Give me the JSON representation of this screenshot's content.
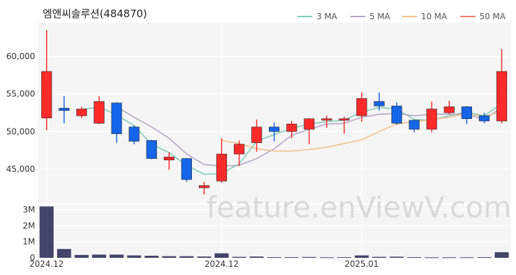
{
  "chart_data": {
    "type": "candlestick",
    "title": "엠앤씨솔루션(484870)",
    "watermark": "feature.enViewV.com",
    "legend": [
      {
        "name": "3 MA",
        "color": "#7fcdbb"
      },
      {
        "name": "5 MA",
        "color": "#b7a4c4"
      },
      {
        "name": "10 MA",
        "color": "#f1c08a"
      },
      {
        "name": "50 MA",
        "color": "#f2796b"
      }
    ],
    "colors": {
      "up": "#ff2a2a",
      "down": "#1565e8",
      "volume": "#43446a"
    },
    "ylim": [
      40500,
      64500
    ],
    "y_ticks": [
      45000,
      50000,
      55000,
      60000
    ],
    "y_tick_labels": [
      "45,000",
      "50,000",
      "55,000",
      "60,000"
    ],
    "volume_ylim": [
      0,
      3300000
    ],
    "volume_ticks": [
      0,
      1000000,
      2000000,
      3000000
    ],
    "volume_tick_labels": [
      "0",
      "1M",
      "2M",
      "3M"
    ],
    "x_tick_labels": [
      {
        "index": 0,
        "label": "2024.12"
      },
      {
        "index": 10,
        "label": "2024.12"
      },
      {
        "index": 18,
        "label": "2025.01"
      }
    ],
    "candles": [
      {
        "o": 51800,
        "h": 63500,
        "l": 50200,
        "c": 58000,
        "v": 3200000
      },
      {
        "o": 53100,
        "h": 54700,
        "l": 51100,
        "c": 52800,
        "v": 550000
      },
      {
        "o": 52100,
        "h": 53300,
        "l": 51800,
        "c": 53000,
        "v": 180000
      },
      {
        "o": 51100,
        "h": 54700,
        "l": 51000,
        "c": 54000,
        "v": 200000
      },
      {
        "o": 53800,
        "h": 53900,
        "l": 48500,
        "c": 49700,
        "v": 200000
      },
      {
        "o": 50600,
        "h": 50800,
        "l": 48300,
        "c": 48700,
        "v": 150000
      },
      {
        "o": 48800,
        "h": 48900,
        "l": 46300,
        "c": 46400,
        "v": 130000
      },
      {
        "o": 46200,
        "h": 47200,
        "l": 44900,
        "c": 46600,
        "v": 100000
      },
      {
        "o": 46400,
        "h": 46500,
        "l": 43300,
        "c": 43600,
        "v": 100000
      },
      {
        "o": 42500,
        "h": 43300,
        "l": 41600,
        "c": 42800,
        "v": 80000
      },
      {
        "o": 43400,
        "h": 49100,
        "l": 43200,
        "c": 47000,
        "v": 280000
      },
      {
        "o": 47000,
        "h": 48800,
        "l": 45400,
        "c": 48300,
        "v": 60000
      },
      {
        "o": 48500,
        "h": 51600,
        "l": 47300,
        "c": 50600,
        "v": 80000
      },
      {
        "o": 50600,
        "h": 51200,
        "l": 48700,
        "c": 50000,
        "v": 40000
      },
      {
        "o": 50000,
        "h": 51400,
        "l": 49100,
        "c": 51000,
        "v": 40000
      },
      {
        "o": 50300,
        "h": 51800,
        "l": 48300,
        "c": 51700,
        "v": 50000
      },
      {
        "o": 51500,
        "h": 52100,
        "l": 50500,
        "c": 51700,
        "v": 30000
      },
      {
        "o": 51500,
        "h": 52000,
        "l": 49700,
        "c": 51700,
        "v": 40000
      },
      {
        "o": 52100,
        "h": 55200,
        "l": 51300,
        "c": 54400,
        "v": 150000
      },
      {
        "o": 54000,
        "h": 55200,
        "l": 52800,
        "c": 53400,
        "v": 60000
      },
      {
        "o": 53400,
        "h": 53900,
        "l": 50900,
        "c": 51100,
        "v": 70000
      },
      {
        "o": 51500,
        "h": 51600,
        "l": 49900,
        "c": 50300,
        "v": 40000
      },
      {
        "o": 50300,
        "h": 54000,
        "l": 49900,
        "c": 53000,
        "v": 30000
      },
      {
        "o": 52500,
        "h": 54100,
        "l": 52300,
        "c": 53300,
        "v": 30000
      },
      {
        "o": 53300,
        "h": 53400,
        "l": 51000,
        "c": 51700,
        "v": 30000
      },
      {
        "o": 52100,
        "h": 52500,
        "l": 51100,
        "c": 51400,
        "v": 40000
      },
      {
        "o": 51400,
        "h": 61000,
        "l": 51100,
        "c": 58000,
        "v": 350000
      }
    ],
    "ma3": [
      null,
      null,
      52900,
      53300,
      52200,
      50800,
      48300,
      47200,
      45500,
      44300,
      44400,
      45700,
      48700,
      49600,
      50400,
      51000,
      51300,
      51500,
      52600,
      53200,
      53000,
      51600,
      51500,
      52100,
      52600,
      52100,
      53700
    ],
    "ma5": [
      null,
      null,
      null,
      null,
      53300,
      51900,
      50600,
      49100,
      47000,
      45600,
      45400,
      45500,
      46400,
      47700,
      49500,
      50300,
      51000,
      51100,
      51900,
      52300,
      52400,
      52100,
      52300,
      52300,
      52300,
      51600,
      53200
    ],
    "ma10": [
      null,
      null,
      null,
      null,
      null,
      null,
      null,
      null,
      null,
      null,
      48800,
      48400,
      47700,
      47400,
      47400,
      47600,
      47900,
      48400,
      48900,
      50000,
      51000,
      51300,
      51600,
      51900,
      52400,
      52000,
      52700
    ],
    "ma50": []
  }
}
